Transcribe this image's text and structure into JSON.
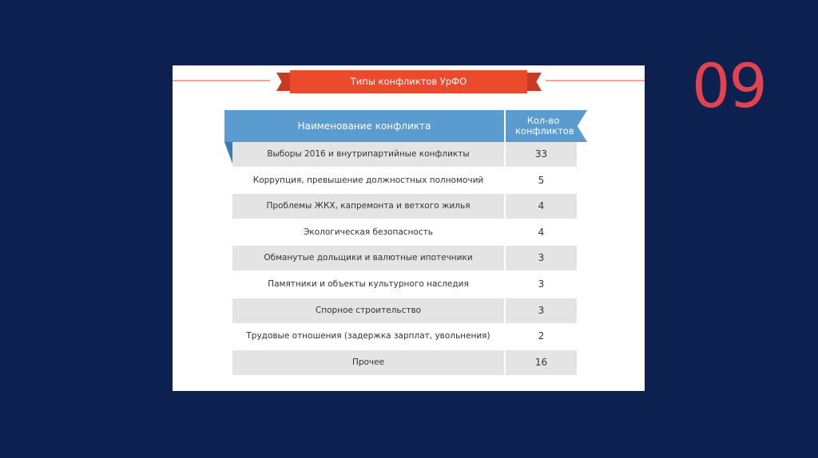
{
  "slide_number": "09",
  "title": "Типы конфликтов УрФО",
  "table": {
    "headers": {
      "name": "Наименование конфликта",
      "count": "Кол-во конфликтов"
    },
    "rows": [
      {
        "name": "Выборы 2016 и внутрипартийные конфликты",
        "count": "33"
      },
      {
        "name": "Коррупция, превышение должностных полномочий",
        "count": "5"
      },
      {
        "name": "Проблемы ЖКХ, капремонта и ветхого жилья",
        "count": "4"
      },
      {
        "name": "Экологическая безопасность",
        "count": "4"
      },
      {
        "name": "Обманутые дольщики и валютные ипотечники",
        "count": "3"
      },
      {
        "name": "Памятники и объекты культурного наследия",
        "count": "3"
      },
      {
        "name": "Спорное строительство",
        "count": "3"
      },
      {
        "name": "Трудовые отношения (задержка зарплат, увольнения)",
        "count": "2"
      },
      {
        "name": "Прочее",
        "count": "16"
      }
    ]
  },
  "colors": {
    "background": "#0d2150",
    "accent_red": "#ec4a2c",
    "header_blue": "#5a9bd0",
    "number": "#e2434f"
  }
}
